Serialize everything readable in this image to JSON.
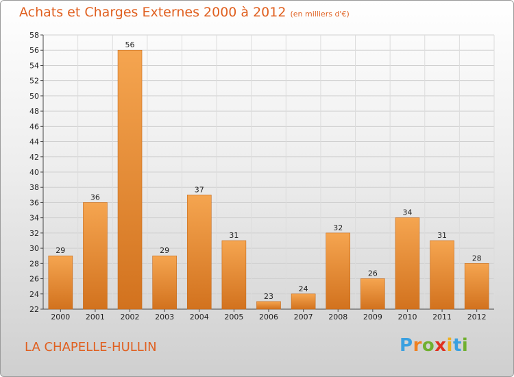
{
  "chart_data": {
    "type": "bar",
    "title": "Achats et Charges Externes 2000 à 2012",
    "subtitle": "(en milliers d'€)",
    "categories": [
      "2000",
      "2001",
      "2002",
      "2003",
      "2004",
      "2005",
      "2006",
      "2007",
      "2008",
      "2009",
      "2010",
      "2011",
      "2012"
    ],
    "values": [
      29,
      36,
      56,
      29,
      37,
      31,
      23,
      24,
      32,
      26,
      34,
      31,
      28
    ],
    "ylim": [
      22,
      58
    ],
    "yticks": [
      22,
      24,
      26,
      28,
      30,
      32,
      34,
      36,
      38,
      40,
      42,
      44,
      46,
      48,
      50,
      52,
      54,
      56,
      58
    ],
    "grid": true,
    "colors": {
      "bar_light": "#f5a550",
      "bar_dark": "#d2721e",
      "accent": "#e06020"
    }
  },
  "location": "LA CHAPELLE-HULLIN",
  "logo": {
    "letters": [
      "P",
      "r",
      "o",
      "x",
      "i",
      "t",
      "i"
    ],
    "colors": [
      "#3aa0e0",
      "#f08020",
      "#70b030",
      "#e03020",
      "#f0b020",
      "#3aa0e0",
      "#70b030"
    ]
  }
}
